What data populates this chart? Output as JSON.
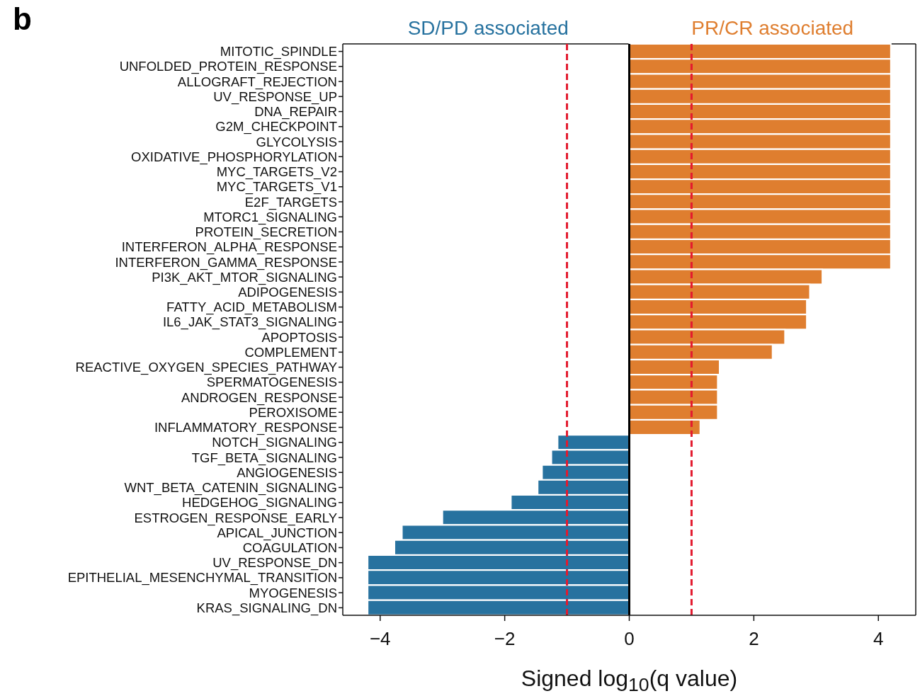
{
  "chart_data": {
    "type": "bar",
    "orientation": "horizontal",
    "xlabel": "Signed log$_{10}$(q value)",
    "annotations": [
      "b",
      "SD/PD associated",
      "PR/CR associated"
    ],
    "categories": [
      "MITOTIC_SPINDLE",
      "UNFOLDED_PROTEIN_RESPONSE",
      "ALLOGRAFT_REJECTION",
      "UV_RESPONSE_UP",
      "DNA_REPAIR",
      "G2M_CHECKPOINT",
      "GLYCOLYSIS",
      "OXIDATIVE_PHOSPHORYLATION",
      "MYC_TARGETS_V2",
      "MYC_TARGETS_V1",
      "E2F_TARGETS",
      "MTORC1_SIGNALING",
      "PROTEIN_SECRETION",
      "INTERFERON_ALPHA_RESPONSE",
      "INTERFERON_GAMMA_RESPONSE",
      "PI3K_AKT_MTOR_SIGNALING",
      "ADIPOGENESIS",
      "FATTY_ACID_METABOLISM",
      "IL6_JAK_STAT3_SIGNALING",
      "APOPTOSIS",
      "COMPLEMENT",
      "REACTIVE_OXYGEN_SPECIES_PATHWAY",
      "SPERMATOGENESIS",
      "ANDROGEN_RESPONSE",
      "PEROXISOME",
      "INFLAMMATORY_RESPONSE",
      "NOTCH_SIGNALING",
      "TGF_BETA_SIGNALING",
      "ANGIOGENESIS",
      "WNT_BETA_CATENIN_SIGNALING",
      "HEDGEHOG_SIGNALING",
      "ESTROGEN_RESPONSE_EARLY",
      "APICAL_JUNCTION",
      "COAGULATION",
      "UV_RESPONSE_DN",
      "EPITHELIAL_MESENCHYMAL_TRANSITION",
      "MYOGENESIS",
      "KRAS_SIGNALING_DN"
    ],
    "values": [
      4.2,
      4.2,
      4.2,
      4.2,
      4.2,
      4.2,
      4.2,
      4.2,
      4.2,
      4.2,
      4.2,
      4.2,
      4.2,
      4.2,
      4.2,
      3.1,
      2.9,
      2.85,
      2.85,
      2.5,
      2.3,
      1.45,
      1.42,
      1.42,
      1.42,
      1.14,
      -1.15,
      -1.25,
      -1.4,
      -1.47,
      -1.9,
      -3.0,
      -3.65,
      -3.77,
      -4.2,
      -4.2,
      -4.2,
      -4.2
    ],
    "colors": [
      "#df7e2f",
      "#df7e2f",
      "#df7e2f",
      "#df7e2f",
      "#df7e2f",
      "#df7e2f",
      "#df7e2f",
      "#df7e2f",
      "#df7e2f",
      "#df7e2f",
      "#df7e2f",
      "#df7e2f",
      "#df7e2f",
      "#df7e2f",
      "#df7e2f",
      "#df7e2f",
      "#df7e2f",
      "#df7e2f",
      "#df7e2f",
      "#df7e2f",
      "#df7e2f",
      "#df7e2f",
      "#df7e2f",
      "#df7e2f",
      "#df7e2f",
      "#df7e2f",
      "#27729f",
      "#27729f",
      "#27729f",
      "#27729f",
      "#27729f",
      "#27729f",
      "#27729f",
      "#27729f",
      "#27729f",
      "#27729f",
      "#27729f",
      "#27729f"
    ],
    "xlim": [
      -4.6,
      4.6
    ],
    "xticks": [
      -4,
      -2,
      0,
      2,
      4
    ],
    "grid": false,
    "legend": false,
    "ref_lines": [
      {
        "axis": "x",
        "value": -1,
        "label": null,
        "color": "#e31a2e",
        "line_style": "dashed"
      },
      {
        "axis": "x",
        "value": 1,
        "label": null,
        "color": "#e31a2e",
        "line_style": "dashed"
      },
      {
        "axis": "x",
        "value": 0,
        "label": null,
        "color": "#000000",
        "line_style": "solid"
      }
    ]
  }
}
